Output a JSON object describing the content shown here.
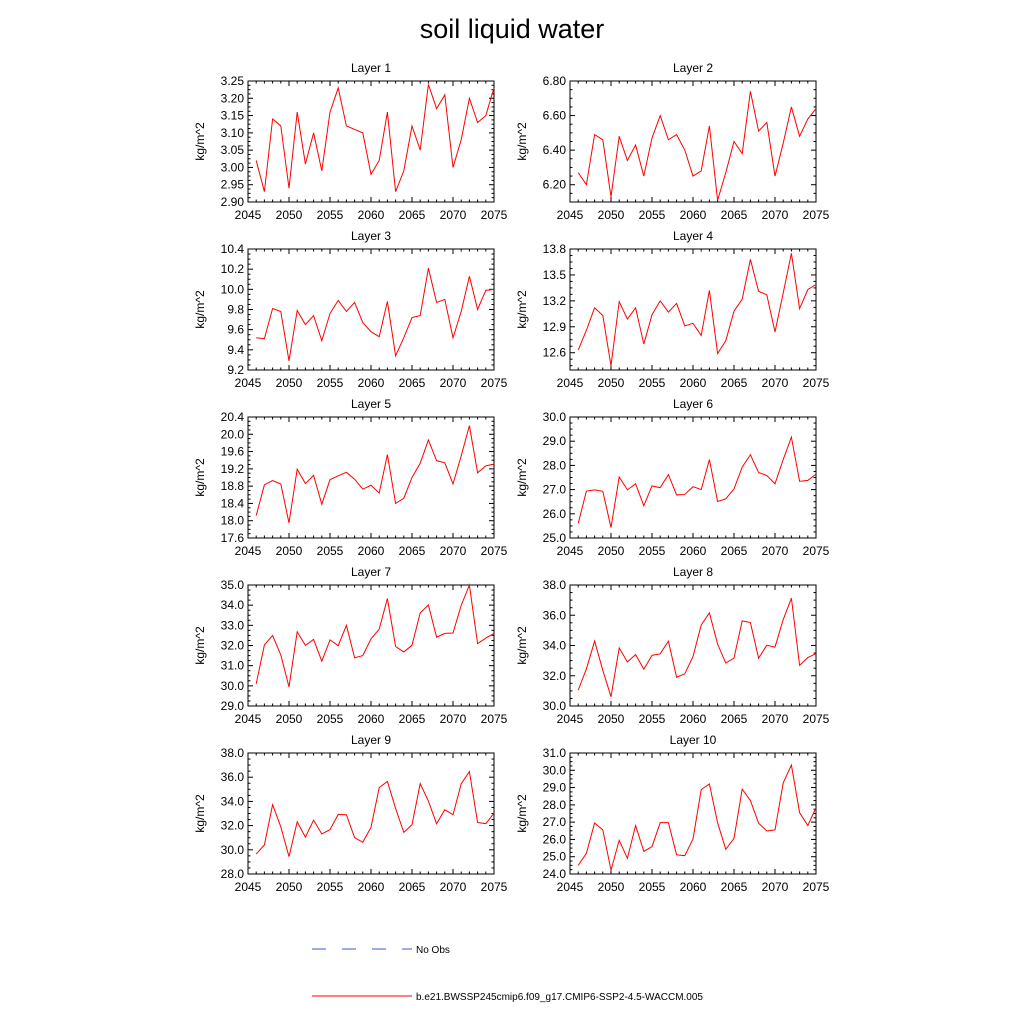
{
  "title": "soil liquid water",
  "colors": {
    "model": "#ff0000",
    "obs": "#3b57c9"
  },
  "legend": {
    "obs_label": "No Obs",
    "model_label": "b.e21.BWSSP245cmip6.f09_g17.CMIP6-SSP2-4.5-WACCM.005"
  },
  "chart_data": [
    {
      "type": "line",
      "title": "Layer 1",
      "ylabel": "kg/m^2",
      "xlim": [
        2045,
        2075
      ],
      "xticks": [
        2045,
        2050,
        2055,
        2060,
        2065,
        2070,
        2075
      ],
      "ylim": [
        2.9,
        3.25
      ],
      "yticks": [
        "2.90",
        "2.95",
        "3.00",
        "3.05",
        "3.10",
        "3.15",
        "3.20",
        "3.25"
      ],
      "x_start": 2046,
      "values": [
        3.02,
        2.93,
        3.14,
        3.12,
        2.94,
        3.16,
        3.01,
        3.1,
        2.99,
        3.16,
        3.23,
        3.12,
        3.11,
        3.1,
        2.98,
        3.02,
        3.16,
        2.93,
        2.99,
        3.12,
        3.05,
        3.24,
        3.17,
        3.21,
        3.0,
        3.08,
        3.2,
        3.13,
        3.15,
        3.23
      ]
    },
    {
      "type": "line",
      "title": "Layer 2",
      "ylabel": "kg/m^2",
      "xlim": [
        2045,
        2075
      ],
      "xticks": [
        2045,
        2050,
        2055,
        2060,
        2065,
        2070,
        2075
      ],
      "ylim": [
        6.1,
        6.8
      ],
      "yticks": [
        "6.20",
        "6.40",
        "6.60",
        "6.80"
      ],
      "x_start": 2046,
      "values": [
        6.27,
        6.2,
        6.49,
        6.46,
        6.13,
        6.48,
        6.34,
        6.43,
        6.25,
        6.47,
        6.6,
        6.46,
        6.49,
        6.4,
        6.25,
        6.28,
        6.54,
        6.11,
        6.27,
        6.45,
        6.38,
        6.74,
        6.51,
        6.56,
        6.25,
        6.44,
        6.65,
        6.48,
        6.58,
        6.64
      ]
    },
    {
      "type": "line",
      "title": "Layer 3",
      "ylabel": "kg/m^2",
      "xlim": [
        2045,
        2075
      ],
      "xticks": [
        2045,
        2050,
        2055,
        2060,
        2065,
        2070,
        2075
      ],
      "ylim": [
        9.2,
        10.4
      ],
      "yticks": [
        "9.2",
        "9.4",
        "9.6",
        "9.8",
        "10.0",
        "10.2",
        "10.4"
      ],
      "x_start": 2046,
      "values": [
        9.52,
        9.51,
        9.81,
        9.78,
        9.29,
        9.79,
        9.65,
        9.74,
        9.49,
        9.76,
        9.89,
        9.78,
        9.87,
        9.67,
        9.58,
        9.53,
        9.88,
        9.34,
        9.52,
        9.72,
        9.74,
        10.21,
        9.87,
        9.9,
        9.52,
        9.78,
        10.13,
        9.8,
        9.99,
        10.0
      ]
    },
    {
      "type": "line",
      "title": "Layer 4",
      "ylabel": "kg/m^2",
      "xlim": [
        2045,
        2075
      ],
      "xticks": [
        2045,
        2050,
        2055,
        2060,
        2065,
        2070,
        2075
      ],
      "ylim": [
        12.4,
        13.8
      ],
      "yticks": [
        "12.6",
        "12.9",
        "13.2",
        "13.5",
        "13.8"
      ],
      "x_start": 2046,
      "values": [
        12.63,
        12.86,
        13.12,
        13.03,
        12.45,
        13.19,
        12.99,
        13.12,
        12.7,
        13.04,
        13.2,
        13.07,
        13.17,
        12.91,
        12.94,
        12.8,
        13.32,
        12.59,
        12.74,
        13.08,
        13.22,
        13.68,
        13.31,
        13.27,
        12.84,
        13.29,
        13.75,
        13.11,
        13.33,
        13.39
      ]
    },
    {
      "type": "line",
      "title": "Layer 5",
      "ylabel": "kg/m^2",
      "xlim": [
        2045,
        2075
      ],
      "xticks": [
        2045,
        2050,
        2055,
        2060,
        2065,
        2070,
        2075
      ],
      "ylim": [
        17.6,
        20.4
      ],
      "yticks": [
        "17.6",
        "18.0",
        "18.4",
        "18.8",
        "19.2",
        "19.6",
        "20.0",
        "20.4"
      ],
      "x_start": 2046,
      "values": [
        18.12,
        18.83,
        18.93,
        18.85,
        17.95,
        19.19,
        18.86,
        19.05,
        18.38,
        18.95,
        19.04,
        19.12,
        18.96,
        18.73,
        18.82,
        18.64,
        19.53,
        18.4,
        18.52,
        19.0,
        19.33,
        19.87,
        19.39,
        19.34,
        18.85,
        19.5,
        20.2,
        19.11,
        19.27,
        19.31
      ]
    },
    {
      "type": "line",
      "title": "Layer 6",
      "ylabel": "kg/m^2",
      "xlim": [
        2045,
        2075
      ],
      "xticks": [
        2045,
        2050,
        2055,
        2060,
        2065,
        2070,
        2075
      ],
      "ylim": [
        25.0,
        30.0
      ],
      "yticks": [
        "25.0",
        "26.0",
        "27.0",
        "28.0",
        "29.0",
        "30.0"
      ],
      "x_start": 2046,
      "values": [
        25.6,
        26.94,
        26.99,
        26.93,
        25.43,
        27.52,
        26.99,
        27.24,
        26.33,
        27.15,
        27.08,
        27.62,
        26.78,
        26.8,
        27.12,
        27.0,
        28.24,
        26.51,
        26.62,
        27.03,
        27.93,
        28.44,
        27.71,
        27.58,
        27.24,
        28.24,
        29.17,
        27.34,
        27.38,
        27.64
      ]
    },
    {
      "type": "line",
      "title": "Layer 7",
      "ylabel": "kg/m^2",
      "xlim": [
        2045,
        2075
      ],
      "xticks": [
        2045,
        2050,
        2055,
        2060,
        2065,
        2070,
        2075
      ],
      "ylim": [
        29.0,
        35.0
      ],
      "yticks": [
        "29.0",
        "30.0",
        "31.0",
        "32.0",
        "33.0",
        "34.0",
        "35.0"
      ],
      "x_start": 2046,
      "values": [
        30.1,
        32.03,
        32.5,
        31.53,
        29.95,
        32.68,
        32.01,
        32.3,
        31.22,
        32.28,
        31.99,
        33.0,
        31.39,
        31.5,
        32.33,
        32.81,
        34.33,
        31.95,
        31.68,
        32.01,
        33.62,
        34.01,
        32.41,
        32.6,
        32.62,
        33.99,
        35.0,
        32.09,
        32.37,
        32.6
      ]
    },
    {
      "type": "line",
      "title": "Layer 8",
      "ylabel": "kg/m^2",
      "xlim": [
        2045,
        2075
      ],
      "xticks": [
        2045,
        2050,
        2055,
        2060,
        2065,
        2070,
        2075
      ],
      "ylim": [
        30.0,
        38.0
      ],
      "yticks": [
        "30.0",
        "32.0",
        "34.0",
        "36.0",
        "38.0"
      ],
      "x_start": 2046,
      "values": [
        31.05,
        32.45,
        34.29,
        32.36,
        30.61,
        33.84,
        32.91,
        33.4,
        32.43,
        33.35,
        33.45,
        34.29,
        31.9,
        32.13,
        33.27,
        35.35,
        36.16,
        34.09,
        32.84,
        33.17,
        35.63,
        35.52,
        33.16,
        34.02,
        33.89,
        35.71,
        37.13,
        32.69,
        33.2,
        33.46
      ]
    },
    {
      "type": "line",
      "title": "Layer 9",
      "ylabel": "kg/m^2",
      "xlim": [
        2045,
        2075
      ],
      "xticks": [
        2045,
        2050,
        2055,
        2060,
        2065,
        2070,
        2075
      ],
      "ylim": [
        28.0,
        38.0
      ],
      "yticks": [
        "28.0",
        "30.0",
        "32.0",
        "34.0",
        "36.0",
        "38.0"
      ],
      "x_start": 2046,
      "values": [
        29.65,
        30.41,
        33.73,
        31.9,
        29.44,
        32.32,
        31.05,
        32.45,
        31.31,
        31.67,
        32.92,
        32.9,
        31.0,
        30.63,
        31.85,
        35.14,
        35.65,
        33.42,
        31.44,
        32.07,
        35.47,
        34.03,
        32.15,
        33.31,
        32.9,
        35.45,
        36.46,
        32.26,
        32.16,
        33.03
      ]
    },
    {
      "type": "line",
      "title": "Layer 10",
      "ylabel": "kg/m^2",
      "xlim": [
        2045,
        2075
      ],
      "xticks": [
        2045,
        2050,
        2055,
        2060,
        2065,
        2070,
        2075
      ],
      "ylim": [
        24.0,
        31.0
      ],
      "yticks": [
        "24.0",
        "25.0",
        "26.0",
        "27.0",
        "28.0",
        "29.0",
        "30.0",
        "31.0"
      ],
      "x_start": 2046,
      "values": [
        24.5,
        25.2,
        26.95,
        26.55,
        24.22,
        25.95,
        24.91,
        26.8,
        25.31,
        25.58,
        26.97,
        26.97,
        25.11,
        25.06,
        26.03,
        28.88,
        29.21,
        26.96,
        25.43,
        26.06,
        28.91,
        28.25,
        26.94,
        26.49,
        26.55,
        29.27,
        30.3,
        27.55,
        26.8,
        27.84
      ]
    }
  ]
}
